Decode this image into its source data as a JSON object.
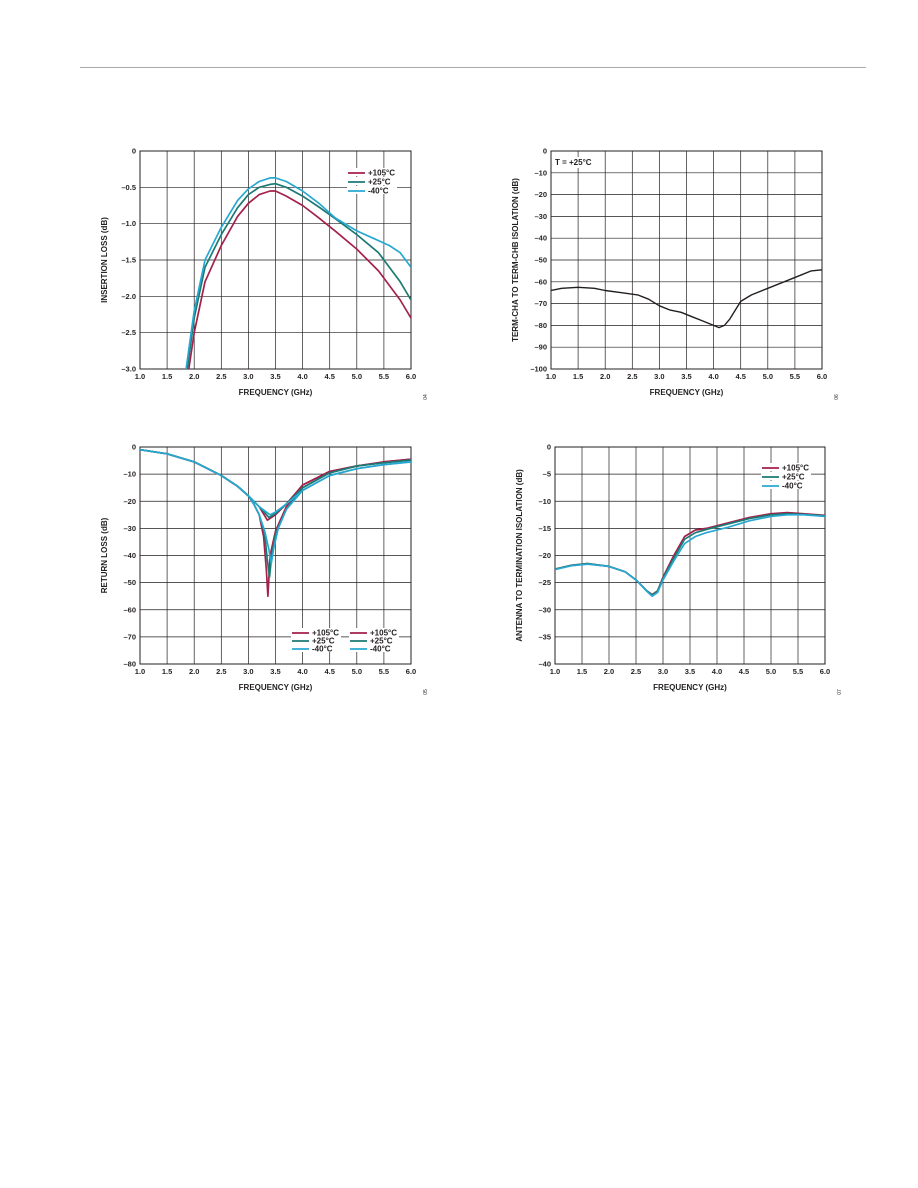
{
  "colors": {
    "red": "#a3214a",
    "green": "#1c7a74",
    "cyan": "#28a8d0",
    "black": "#231f20"
  },
  "chart_data": [
    {
      "type": "line",
      "xlabel": "FREQUENCY (GHz)",
      "ylabel": "INSERTION LOSS (dB)",
      "xlim": [
        1.0,
        6.0
      ],
      "ylim": [
        -3.0,
        0
      ],
      "xticks": [
        1.0,
        1.5,
        2.0,
        2.5,
        3.0,
        3.5,
        4.0,
        4.5,
        5.0,
        5.5,
        6.0
      ],
      "xtick_labels": [
        "1.0",
        "1.5",
        "2.0",
        "2.5",
        "3.0",
        "3.5",
        "4.0",
        "4.5",
        "5.0",
        "5.5",
        "6.0"
      ],
      "yticks": [
        0,
        -0.5,
        -1.0,
        -1.5,
        -2.0,
        -2.5,
        -3.0
      ],
      "ytick_labels": [
        "0",
        "–0.5",
        "–1.0",
        "–1.5",
        "–2.0",
        "–2.5",
        "–3.0"
      ],
      "grid": true,
      "legend_position": "top-right",
      "figure_id": "04",
      "series": [
        {
          "name": "+105°C",
          "color": "red",
          "x": [
            1.9,
            2.0,
            2.2,
            2.5,
            2.8,
            3.0,
            3.2,
            3.4,
            3.5,
            3.7,
            4.0,
            4.3,
            4.6,
            5.0,
            5.4,
            5.8,
            6.0
          ],
          "y": [
            -3.0,
            -2.5,
            -1.8,
            -1.3,
            -0.9,
            -0.72,
            -0.6,
            -0.55,
            -0.55,
            -0.62,
            -0.75,
            -0.92,
            -1.1,
            -1.35,
            -1.65,
            -2.05,
            -2.3
          ]
        },
        {
          "name": "+25°C",
          "color": "green",
          "x": [
            1.87,
            2.0,
            2.2,
            2.5,
            2.8,
            3.0,
            3.2,
            3.4,
            3.5,
            3.7,
            4.0,
            4.3,
            4.6,
            5.0,
            5.4,
            5.8,
            6.0
          ],
          "y": [
            -3.0,
            -2.3,
            -1.6,
            -1.15,
            -0.78,
            -0.6,
            -0.5,
            -0.46,
            -0.45,
            -0.5,
            -0.62,
            -0.77,
            -0.93,
            -1.15,
            -1.4,
            -1.8,
            -2.05
          ]
        },
        {
          "name": "-40°C",
          "color": "cyan",
          "x": [
            1.85,
            2.0,
            2.2,
            2.5,
            2.8,
            3.0,
            3.2,
            3.4,
            3.5,
            3.7,
            4.0,
            4.3,
            4.6,
            5.0,
            5.3,
            5.6,
            5.8,
            6.0
          ],
          "y": [
            -3.0,
            -2.2,
            -1.5,
            -1.05,
            -0.68,
            -0.52,
            -0.42,
            -0.37,
            -0.37,
            -0.42,
            -0.55,
            -0.72,
            -0.92,
            -1.1,
            -1.2,
            -1.3,
            -1.4,
            -1.6
          ]
        }
      ]
    },
    {
      "type": "line",
      "xlabel": "FREQUENCY (GHz)",
      "ylabel": "TERM-CHA TO TERM-CHB ISOLATION (dB)",
      "xlim": [
        1.0,
        6.0
      ],
      "ylim": [
        -100,
        0
      ],
      "xticks": [
        1.0,
        1.5,
        2.0,
        2.5,
        3.0,
        3.5,
        4.0,
        4.5,
        5.0,
        5.5,
        6.0
      ],
      "xtick_labels": [
        "1.0",
        "1.5",
        "2.0",
        "2.5",
        "3.0",
        "3.5",
        "4.0",
        "4.5",
        "5.0",
        "5.5",
        "6.0"
      ],
      "yticks": [
        0,
        -10,
        -20,
        -30,
        -40,
        -50,
        -60,
        -70,
        -80,
        -90,
        -100
      ],
      "ytick_labels": [
        "0",
        "–10",
        "–20",
        "–30",
        "–40",
        "–50",
        "–60",
        "–70",
        "–80",
        "–90",
        "–100"
      ],
      "grid": true,
      "annotation": "T = +25°C",
      "figure_id": "06",
      "series": [
        {
          "color": "black",
          "x": [
            1.0,
            1.2,
            1.5,
            1.8,
            2.0,
            2.3,
            2.6,
            2.8,
            3.0,
            3.2,
            3.4,
            3.6,
            3.8,
            4.0,
            4.1,
            4.2,
            4.3,
            4.4,
            4.5,
            4.7,
            5.0,
            5.3,
            5.6,
            5.8,
            6.0
          ],
          "y": [
            -64,
            -63,
            -62.5,
            -63,
            -64,
            -65,
            -66,
            -68,
            -71,
            -73,
            -74,
            -76,
            -78,
            -80,
            -81,
            -80,
            -77,
            -73,
            -69,
            -66,
            -63,
            -60,
            -57,
            -55,
            -54.5
          ]
        }
      ]
    },
    {
      "type": "line",
      "xlabel": "FREQUENCY (GHz)",
      "ylabel": "RETURN LOSS (dB)",
      "xlim": [
        1.0,
        6.0
      ],
      "ylim": [
        -80,
        0
      ],
      "xticks": [
        1.0,
        1.5,
        2.0,
        2.5,
        3.0,
        3.5,
        4.0,
        4.5,
        5.0,
        5.5,
        6.0
      ],
      "xtick_labels": [
        "1.0",
        "1.5",
        "2.0",
        "2.5",
        "3.0",
        "3.5",
        "4.0",
        "4.5",
        "5.0",
        "5.5",
        "6.0"
      ],
      "yticks": [
        0,
        -10,
        -20,
        -30,
        -40,
        -50,
        -60,
        -70,
        -80
      ],
      "ytick_labels": [
        "0",
        "–10",
        "–20",
        "–30",
        "–40",
        "–50",
        "–60",
        "–70",
        "–80"
      ],
      "grid": true,
      "legend_position": "bottom-right",
      "figure_id": "05",
      "series": [
        {
          "name": "+105°C",
          "color": "red",
          "x": [
            1.0,
            1.5,
            2.0,
            2.5,
            2.8,
            3.0,
            3.1,
            3.2,
            3.28,
            3.33,
            3.36,
            3.4,
            3.5,
            3.7,
            4.0,
            4.5,
            5.0,
            5.5,
            6.0
          ],
          "y": [
            -1,
            -2.5,
            -5.5,
            -10.5,
            -14.5,
            -18,
            -21,
            -25,
            -33,
            -45,
            -55,
            -40,
            -31,
            -22,
            -14,
            -9,
            -7,
            -5.5,
            -4.5
          ]
        },
        {
          "name": "+25°C",
          "color": "green",
          "x": [
            1.0,
            1.5,
            2.0,
            2.5,
            2.8,
            3.0,
            3.1,
            3.2,
            3.3,
            3.35,
            3.39,
            3.43,
            3.5,
            3.7,
            4.0,
            4.5,
            5.0,
            5.5,
            6.0
          ],
          "y": [
            -1,
            -2.5,
            -5.5,
            -10.5,
            -14.5,
            -18,
            -21,
            -25,
            -32,
            -42,
            -48,
            -40,
            -32,
            -23,
            -15,
            -9.5,
            -7,
            -5.8,
            -4.8
          ]
        },
        {
          "name": "-40°C",
          "color": "cyan",
          "x": [
            1.0,
            1.5,
            2.0,
            2.5,
            2.8,
            3.0,
            3.1,
            3.2,
            3.3,
            3.38,
            3.42,
            3.47,
            3.55,
            3.7,
            4.0,
            4.5,
            5.0,
            5.5,
            6.0
          ],
          "y": [
            -1,
            -2.5,
            -5.5,
            -10.5,
            -14.5,
            -18,
            -21,
            -25,
            -31,
            -38,
            -43,
            -37,
            -30,
            -23,
            -16,
            -10.5,
            -8,
            -6.5,
            -5.5
          ]
        },
        {
          "name": "+105°C",
          "color": "red",
          "x": [
            1.0,
            1.5,
            2.0,
            2.5,
            2.8,
            3.0,
            3.2,
            3.35,
            3.5,
            3.7,
            4.0,
            4.5,
            5.0,
            5.5,
            6.0
          ],
          "y": [
            -1,
            -2.5,
            -5.5,
            -10.5,
            -14.5,
            -18,
            -22,
            -27,
            -25,
            -21,
            -14,
            -9,
            -7,
            -5.5,
            -4.5
          ]
        },
        {
          "name": "+25°C",
          "color": "green",
          "x": [
            1.0,
            1.5,
            2.0,
            2.5,
            2.8,
            3.0,
            3.2,
            3.38,
            3.5,
            3.7,
            4.0,
            4.5,
            5.0,
            5.5,
            6.0
          ],
          "y": [
            -1,
            -2.5,
            -5.5,
            -10.5,
            -14.5,
            -18,
            -22,
            -26,
            -24.5,
            -21,
            -15,
            -9.5,
            -7,
            -5.8,
            -4.8
          ]
        },
        {
          "name": "-40°C",
          "color": "cyan",
          "x": [
            1.0,
            1.5,
            2.0,
            2.5,
            2.8,
            3.0,
            3.2,
            3.4,
            3.5,
            3.7,
            4.0,
            4.5,
            5.0,
            5.5,
            6.0
          ],
          "y": [
            -1,
            -2.5,
            -5.5,
            -10.5,
            -14.5,
            -18,
            -22,
            -25,
            -24,
            -21,
            -16,
            -10.5,
            -8,
            -6.5,
            -5.5
          ]
        }
      ]
    },
    {
      "type": "line",
      "xlabel": "FREQUENCY (GHz)",
      "ylabel": "ANTENNA TO TERMINATION ISOLATION (dB)",
      "xlim": [
        1.0,
        6.0
      ],
      "ylim": [
        -40,
        0
      ],
      "xticks": [
        1.0,
        1.5,
        2.0,
        2.5,
        3.0,
        3.5,
        4.0,
        4.5,
        5.0,
        5.5,
        6.0
      ],
      "xtick_labels": [
        "1.0",
        "1.5",
        "2.0",
        "2.5",
        "3.0",
        "3.5",
        "4.0",
        "4.5",
        "5.0",
        "5.5",
        "6.0"
      ],
      "yticks": [
        0,
        -5,
        -10,
        -15,
        -20,
        -25,
        -30,
        -35,
        -40
      ],
      "ytick_labels": [
        "0",
        "–5",
        "–10",
        "–15",
        "–20",
        "–25",
        "–30",
        "–35",
        "–40"
      ],
      "grid": true,
      "legend_position": "top-right",
      "figure_id": "07",
      "series": [
        {
          "name": "+105°C",
          "color": "red",
          "x": [
            1.0,
            1.3,
            1.6,
            2.0,
            2.3,
            2.5,
            2.7,
            2.8,
            2.9,
            3.0,
            3.2,
            3.4,
            3.6,
            3.8,
            4.2,
            4.6,
            5.0,
            5.3,
            5.6,
            6.0
          ],
          "y": [
            -22.5,
            -21.8,
            -21.5,
            -22,
            -23,
            -24.5,
            -26.5,
            -27.2,
            -26.5,
            -24,
            -20,
            -16.5,
            -15.3,
            -15,
            -14,
            -13,
            -12.3,
            -12.1,
            -12.3,
            -12.6
          ]
        },
        {
          "name": "+25°C",
          "color": "green",
          "x": [
            1.0,
            1.3,
            1.6,
            2.0,
            2.3,
            2.5,
            2.7,
            2.8,
            2.9,
            3.0,
            3.2,
            3.4,
            3.6,
            3.8,
            4.2,
            4.6,
            5.0,
            5.3,
            5.6,
            6.0
          ],
          "y": [
            -22.5,
            -21.8,
            -21.5,
            -22,
            -23,
            -24.5,
            -26.5,
            -27.3,
            -26.5,
            -24.2,
            -20.5,
            -17,
            -15.8,
            -15.2,
            -14.2,
            -13.2,
            -12.5,
            -12.3,
            -12.4,
            -12.7
          ]
        },
        {
          "name": "-40°C",
          "color": "cyan",
          "x": [
            1.0,
            1.3,
            1.6,
            2.0,
            2.3,
            2.5,
            2.7,
            2.8,
            2.9,
            3.0,
            3.2,
            3.4,
            3.6,
            3.8,
            4.2,
            4.6,
            5.0,
            5.3,
            5.6,
            6.0
          ],
          "y": [
            -22.6,
            -21.9,
            -21.6,
            -22,
            -23,
            -24.5,
            -26.6,
            -27.5,
            -26.8,
            -24.5,
            -21,
            -17.8,
            -16.5,
            -15.8,
            -14.8,
            -13.6,
            -12.8,
            -12.5,
            -12.5,
            -12.8
          ]
        }
      ]
    }
  ]
}
